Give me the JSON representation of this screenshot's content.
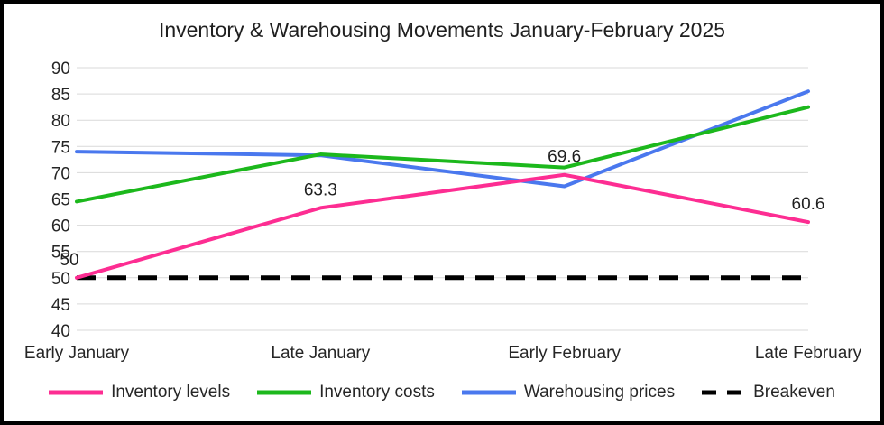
{
  "chart_data": {
    "type": "line",
    "title": "Inventory & Warehousing Movements January-February 2025",
    "categories": [
      "Early January",
      "Late January",
      "Early February",
      "Late February"
    ],
    "series": [
      {
        "name": "Inventory levels",
        "color": "#fd2d92",
        "values": [
          50,
          63.3,
          69.6,
          60.6
        ],
        "point_labels": [
          "50",
          "63.3",
          "69.6",
          "60.6"
        ],
        "dashed": false
      },
      {
        "name": "Inventory costs",
        "color": "#1cb81c",
        "values": [
          64.5,
          73.5,
          71,
          82.5
        ],
        "point_labels": [],
        "dashed": false
      },
      {
        "name": "Warehousing prices",
        "color": "#4a78ee",
        "values": [
          74,
          73.3,
          67.4,
          85.5
        ],
        "point_labels": [],
        "dashed": false
      },
      {
        "name": "Breakeven",
        "color": "#000000",
        "values": [
          50,
          50,
          50,
          50
        ],
        "point_labels": [],
        "dashed": true
      }
    ],
    "ylim": [
      40,
      90
    ],
    "ytick_step": 5,
    "grid": true,
    "gridline_color": "#d9d9d9",
    "legend_position": "bottom",
    "xlabel": "",
    "ylabel": ""
  }
}
